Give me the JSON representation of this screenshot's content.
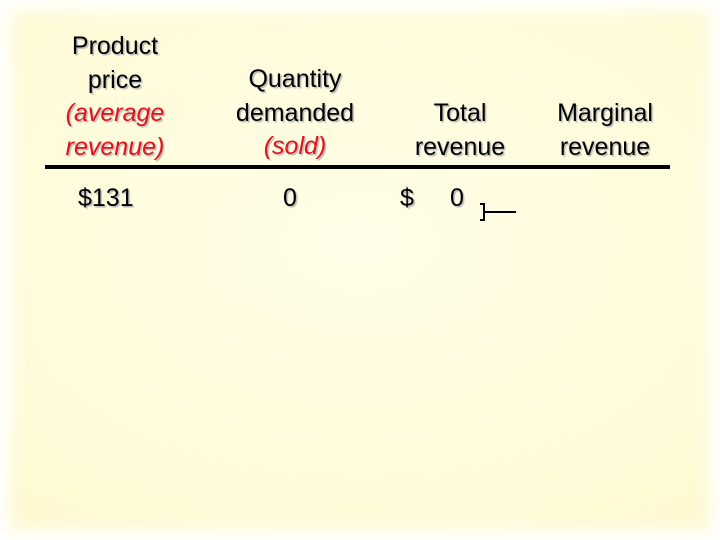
{
  "headers": {
    "price": [
      "Product",
      "price"
    ],
    "price_italic": [
      "(average",
      "revenue)"
    ],
    "quantity": [
      "Quantity",
      "demanded"
    ],
    "quantity_italic": "(sold)",
    "total": [
      "Total",
      "revenue"
    ],
    "marginal": [
      "Marginal",
      "revenue"
    ]
  },
  "row": {
    "price": "$131",
    "quantity": "0",
    "total_currency": "$",
    "total": "0"
  },
  "colors": {
    "italic_accent": "#e0141c",
    "background": "#fffbd8",
    "rule": "#000000"
  }
}
